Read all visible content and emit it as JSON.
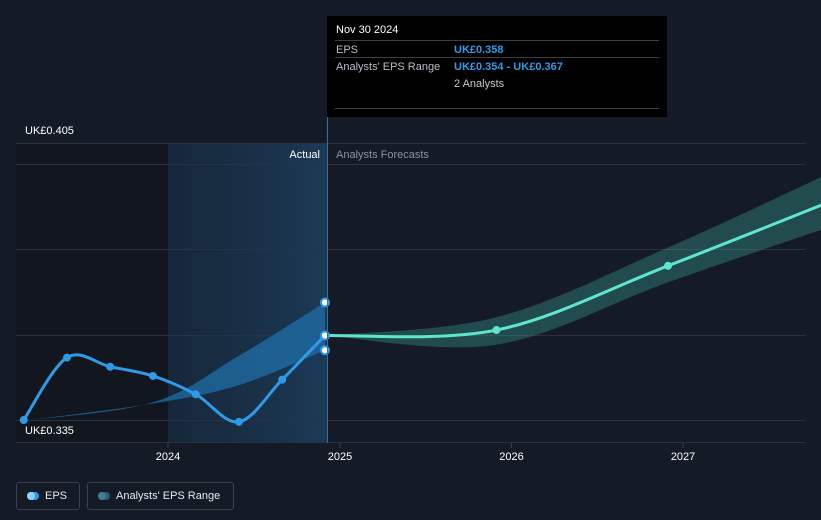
{
  "chart_data": {
    "type": "line",
    "y_tick_labels": [
      "UK£0.405",
      "UK£0.335"
    ],
    "x_tick_labels": [
      "2024",
      "2025",
      "2026",
      "2027"
    ],
    "region_labels": {
      "actual": "Actual",
      "forecast": "Analysts Forecasts"
    },
    "ylim": [
      0.335,
      0.405
    ],
    "series": [
      {
        "name": "EPS",
        "color": "#2f9ae8",
        "points": [
          [
            "2023-02-28",
            0.335
          ],
          [
            "2023-05-31",
            0.352
          ],
          [
            "2023-08-31",
            0.3495
          ],
          [
            "2023-11-30",
            0.347
          ],
          [
            "2024-02-29",
            0.342
          ],
          [
            "2024-05-31",
            0.3345
          ],
          [
            "2024-08-31",
            0.346
          ],
          [
            "2024-11-30",
            0.358
          ]
        ]
      },
      {
        "name": "EPS forecast",
        "color": "#5ee6cc",
        "points": [
          [
            "2024-11-30",
            0.358
          ],
          [
            "2025-11-30",
            0.3595
          ],
          [
            "2026-11-30",
            0.377
          ],
          [
            "2027-11-30",
            0.3955
          ]
        ]
      }
    ],
    "range_series": [
      {
        "name": "Analysts' EPS Range (past)",
        "points": [
          [
            "2023-02-28",
            0.3348,
            0.3348
          ],
          [
            "2023-11-30",
            0.3395,
            0.3398
          ],
          [
            "2024-05-31",
            0.3445,
            0.3525
          ],
          [
            "2024-11-30",
            0.354,
            0.367
          ]
        ]
      },
      {
        "name": "Analysts' EPS Range (forecast)",
        "points": [
          [
            "2024-11-30",
            0.358,
            0.358
          ],
          [
            "2025-11-30",
            0.3555,
            0.363
          ],
          [
            "2026-11-30",
            0.3725,
            0.382
          ],
          [
            "2027-11-30",
            0.3885,
            0.4035
          ]
        ]
      }
    ],
    "markers": [
      [
        "2024-11-30",
        0.367
      ],
      [
        "2024-11-30",
        0.354
      ]
    ]
  },
  "tooltip": {
    "date": "Nov 30 2024",
    "eps_label": "EPS",
    "eps_value": "UK£0.358",
    "range_label": "Analysts' EPS Range",
    "range_value": "UK£0.354 - UK£0.367",
    "analysts": "2 Analysts"
  },
  "legend": {
    "eps_label": "EPS",
    "range_label": "Analysts' EPS Range"
  }
}
